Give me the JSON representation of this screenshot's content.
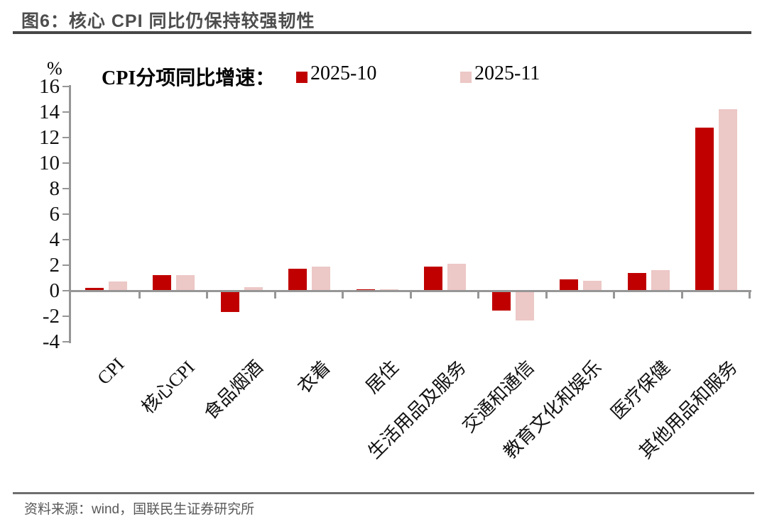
{
  "header": {
    "title": "图6：核心 CPI 同比仍保持较强韧性"
  },
  "footer": {
    "source": "资料来源：wind，国联民生证券研究所"
  },
  "colors": {
    "series1": "#C00000",
    "series2": "#ECC8C6",
    "axis": "#969696",
    "title_text": "#4D4D4D",
    "footer_text": "#595959"
  },
  "chart_data": {
    "type": "bar",
    "title": "CPI分项同比增速：",
    "unit_label": "%",
    "categories": [
      "CPI",
      "核心CPI",
      "食品烟酒",
      "衣着",
      "居住",
      "生活用品及服务",
      "交通和通信",
      "教育文化和娱乐",
      "医疗保健",
      "其他用品和服务"
    ],
    "series": [
      {
        "name": "2025-10",
        "color": "#C00000",
        "values": [
          0.2,
          1.2,
          -1.6,
          1.7,
          0.1,
          1.9,
          -1.5,
          0.9,
          1.4,
          12.8
        ]
      },
      {
        "name": "2025-11",
        "color": "#ECC8C6",
        "values": [
          0.7,
          1.2,
          0.3,
          1.9,
          0.1,
          2.1,
          -2.3,
          0.8,
          1.6,
          14.2
        ]
      }
    ],
    "ylim": [
      -4,
      16
    ],
    "ytick_step": 2,
    "grid": false,
    "legend_position": "top"
  }
}
